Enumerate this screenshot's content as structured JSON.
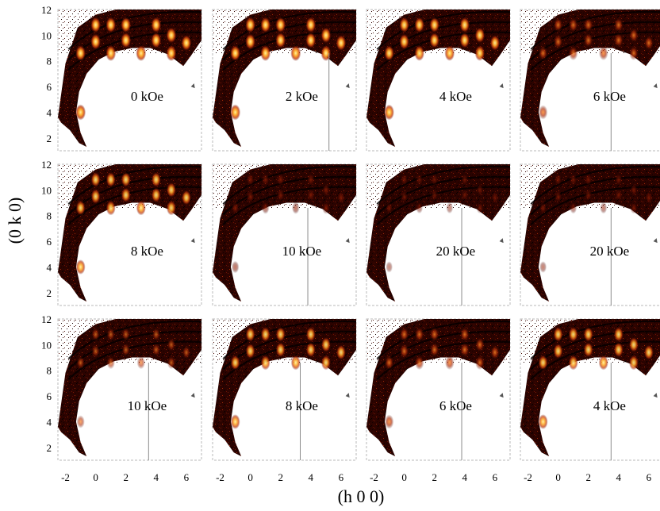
{
  "chart_data": {
    "type": "heatmap",
    "xlabel": "(h 0 0)",
    "ylabel": "(0 k 0)",
    "x_ticks": [
      -2,
      0,
      2,
      4,
      6
    ],
    "y_ticks": [
      2,
      4,
      6,
      8,
      10,
      12
    ],
    "xlim": [
      -2.5,
      7
    ],
    "ylim": [
      1,
      12
    ],
    "grid": false,
    "colormap": [
      "#ffffff",
      "#1a0000",
      "#7a0f05",
      "#d0400a",
      "#ffd070"
    ],
    "peak_positions": [
      [
        -1,
        4
      ],
      [
        -1,
        8.6
      ],
      [
        0,
        9.5
      ],
      [
        0,
        10.8
      ],
      [
        1,
        8.6
      ],
      [
        1,
        10.8
      ],
      [
        2,
        9.6
      ],
      [
        2,
        10.8
      ],
      [
        3,
        8.6
      ],
      [
        4,
        9.6
      ],
      [
        4,
        10.8
      ],
      [
        5,
        8.6
      ],
      [
        5,
        10
      ],
      [
        6,
        9.4
      ]
    ],
    "panels": [
      {
        "label": "0 kOe",
        "line_x": null
      },
      {
        "label": "2 kOe",
        "line_x": 5.2
      },
      {
        "label": "4 kOe",
        "line_x": null
      },
      {
        "label": "6 kOe",
        "line_x": 3.5
      },
      {
        "label": "8 kOe",
        "line_x": null
      },
      {
        "label": "10 kOe",
        "line_x": 3.8
      },
      {
        "label": "20 kOe",
        "line_x": 3.8
      },
      {
        "label": "20 kOe",
        "line_x": 3.5
      },
      {
        "label": "10 kOe",
        "line_x": 3.5
      },
      {
        "label": "8 kOe",
        "line_x": 3.3
      },
      {
        "label": "6 kOe",
        "line_x": 3.8
      },
      {
        "label": "4 kOe",
        "line_x": 3.5
      }
    ],
    "peak_intensity": [
      1.0,
      1.0,
      0.95,
      0.75,
      0.85,
      0.45,
      0.3,
      0.35,
      0.55,
      0.85,
      0.75,
      0.85
    ]
  }
}
